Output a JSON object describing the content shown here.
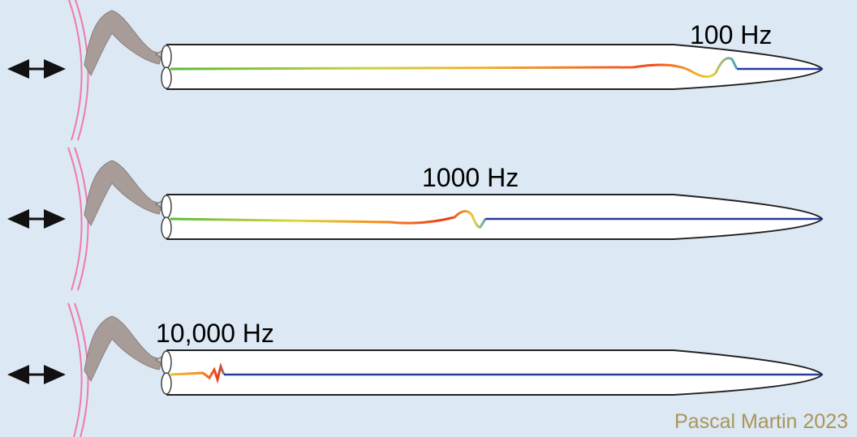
{
  "labels": [
    "100 Hz",
    "1000 Hz",
    "10,000 Hz"
  ],
  "credit": "Pascal Martin 2023"
}
